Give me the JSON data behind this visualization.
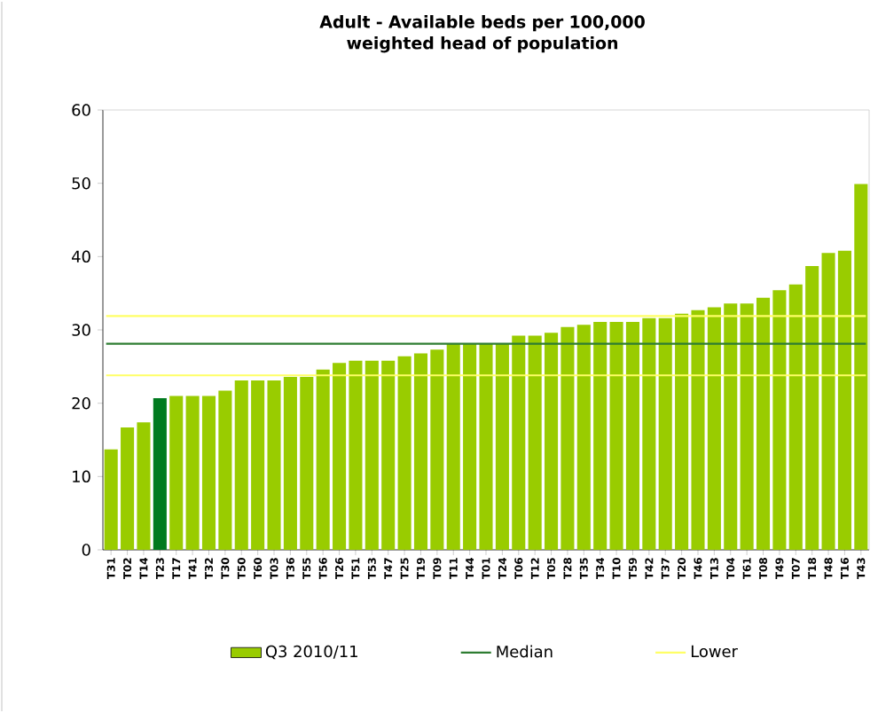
{
  "chart_data": {
    "type": "bar",
    "title": "Adult - Available beds per 100,000 weighted head of population",
    "categories": [
      "T31",
      "T02",
      "T14",
      "T23",
      "T17",
      "T41",
      "T32",
      "T30",
      "T50",
      "T60",
      "T03",
      "T36",
      "T55",
      "T56",
      "T26",
      "T51",
      "T53",
      "T47",
      "T25",
      "T19",
      "T09",
      "T11",
      "T44",
      "T01",
      "T24",
      "T06",
      "T12",
      "T05",
      "T28",
      "T35",
      "T34",
      "T10",
      "T59",
      "T42",
      "T37",
      "T20",
      "T46",
      "T13",
      "T04",
      "T61",
      "T08",
      "T49",
      "T07",
      "T18",
      "T48",
      "T16",
      "T43"
    ],
    "series": [
      {
        "name": "Q3 2010/11",
        "color": "#99cc00",
        "colors": [
          "#99cc00",
          "#99cc00",
          "#99cc00",
          "#007a1f",
          "#99cc00",
          "#99cc00",
          "#99cc00",
          "#99cc00",
          "#99cc00",
          "#99cc00",
          "#99cc00",
          "#99cc00",
          "#99cc00",
          "#99cc00",
          "#99cc00",
          "#99cc00",
          "#99cc00",
          "#99cc00",
          "#99cc00",
          "#99cc00",
          "#99cc00",
          "#99cc00",
          "#99cc00",
          "#99cc00",
          "#99cc00",
          "#99cc00",
          "#99cc00",
          "#99cc00",
          "#99cc00",
          "#99cc00",
          "#99cc00",
          "#99cc00",
          "#99cc00",
          "#99cc00",
          "#99cc00",
          "#99cc00",
          "#99cc00",
          "#99cc00",
          "#99cc00",
          "#99cc00",
          "#99cc00",
          "#99cc00",
          "#99cc00",
          "#99cc00",
          "#99cc00",
          "#99cc00",
          "#99cc00"
        ],
        "values": [
          13.7,
          16.7,
          17.4,
          20.7,
          21,
          21,
          21,
          21.7,
          23.1,
          23.1,
          23.1,
          23.6,
          23.6,
          24.6,
          25.5,
          25.8,
          25.8,
          25.8,
          26.4,
          26.8,
          27.3,
          28.1,
          28.1,
          28.1,
          28.1,
          29.2,
          29.2,
          29.6,
          30.4,
          30.7,
          31.1,
          31.1,
          31.1,
          31.6,
          31.6,
          32.2,
          32.7,
          33.1,
          33.6,
          33.6,
          34.4,
          35.4,
          36.2,
          38.7,
          40.5,
          40.8,
          49.9
        ]
      }
    ],
    "ref_lines": [
      {
        "axis": "y",
        "value": 28.1,
        "label": "Median",
        "color": "#2e7d32"
      },
      {
        "axis": "y",
        "value": 23.8,
        "label": "Lower",
        "color": "#ffff66"
      },
      {
        "axis": "y",
        "value": 31.9,
        "color": "#ffff66"
      }
    ],
    "ylim": [
      0,
      60
    ],
    "yticks": [
      0,
      10,
      20,
      30,
      40,
      50,
      60
    ],
    "legend": "bottom",
    "grid": false
  }
}
